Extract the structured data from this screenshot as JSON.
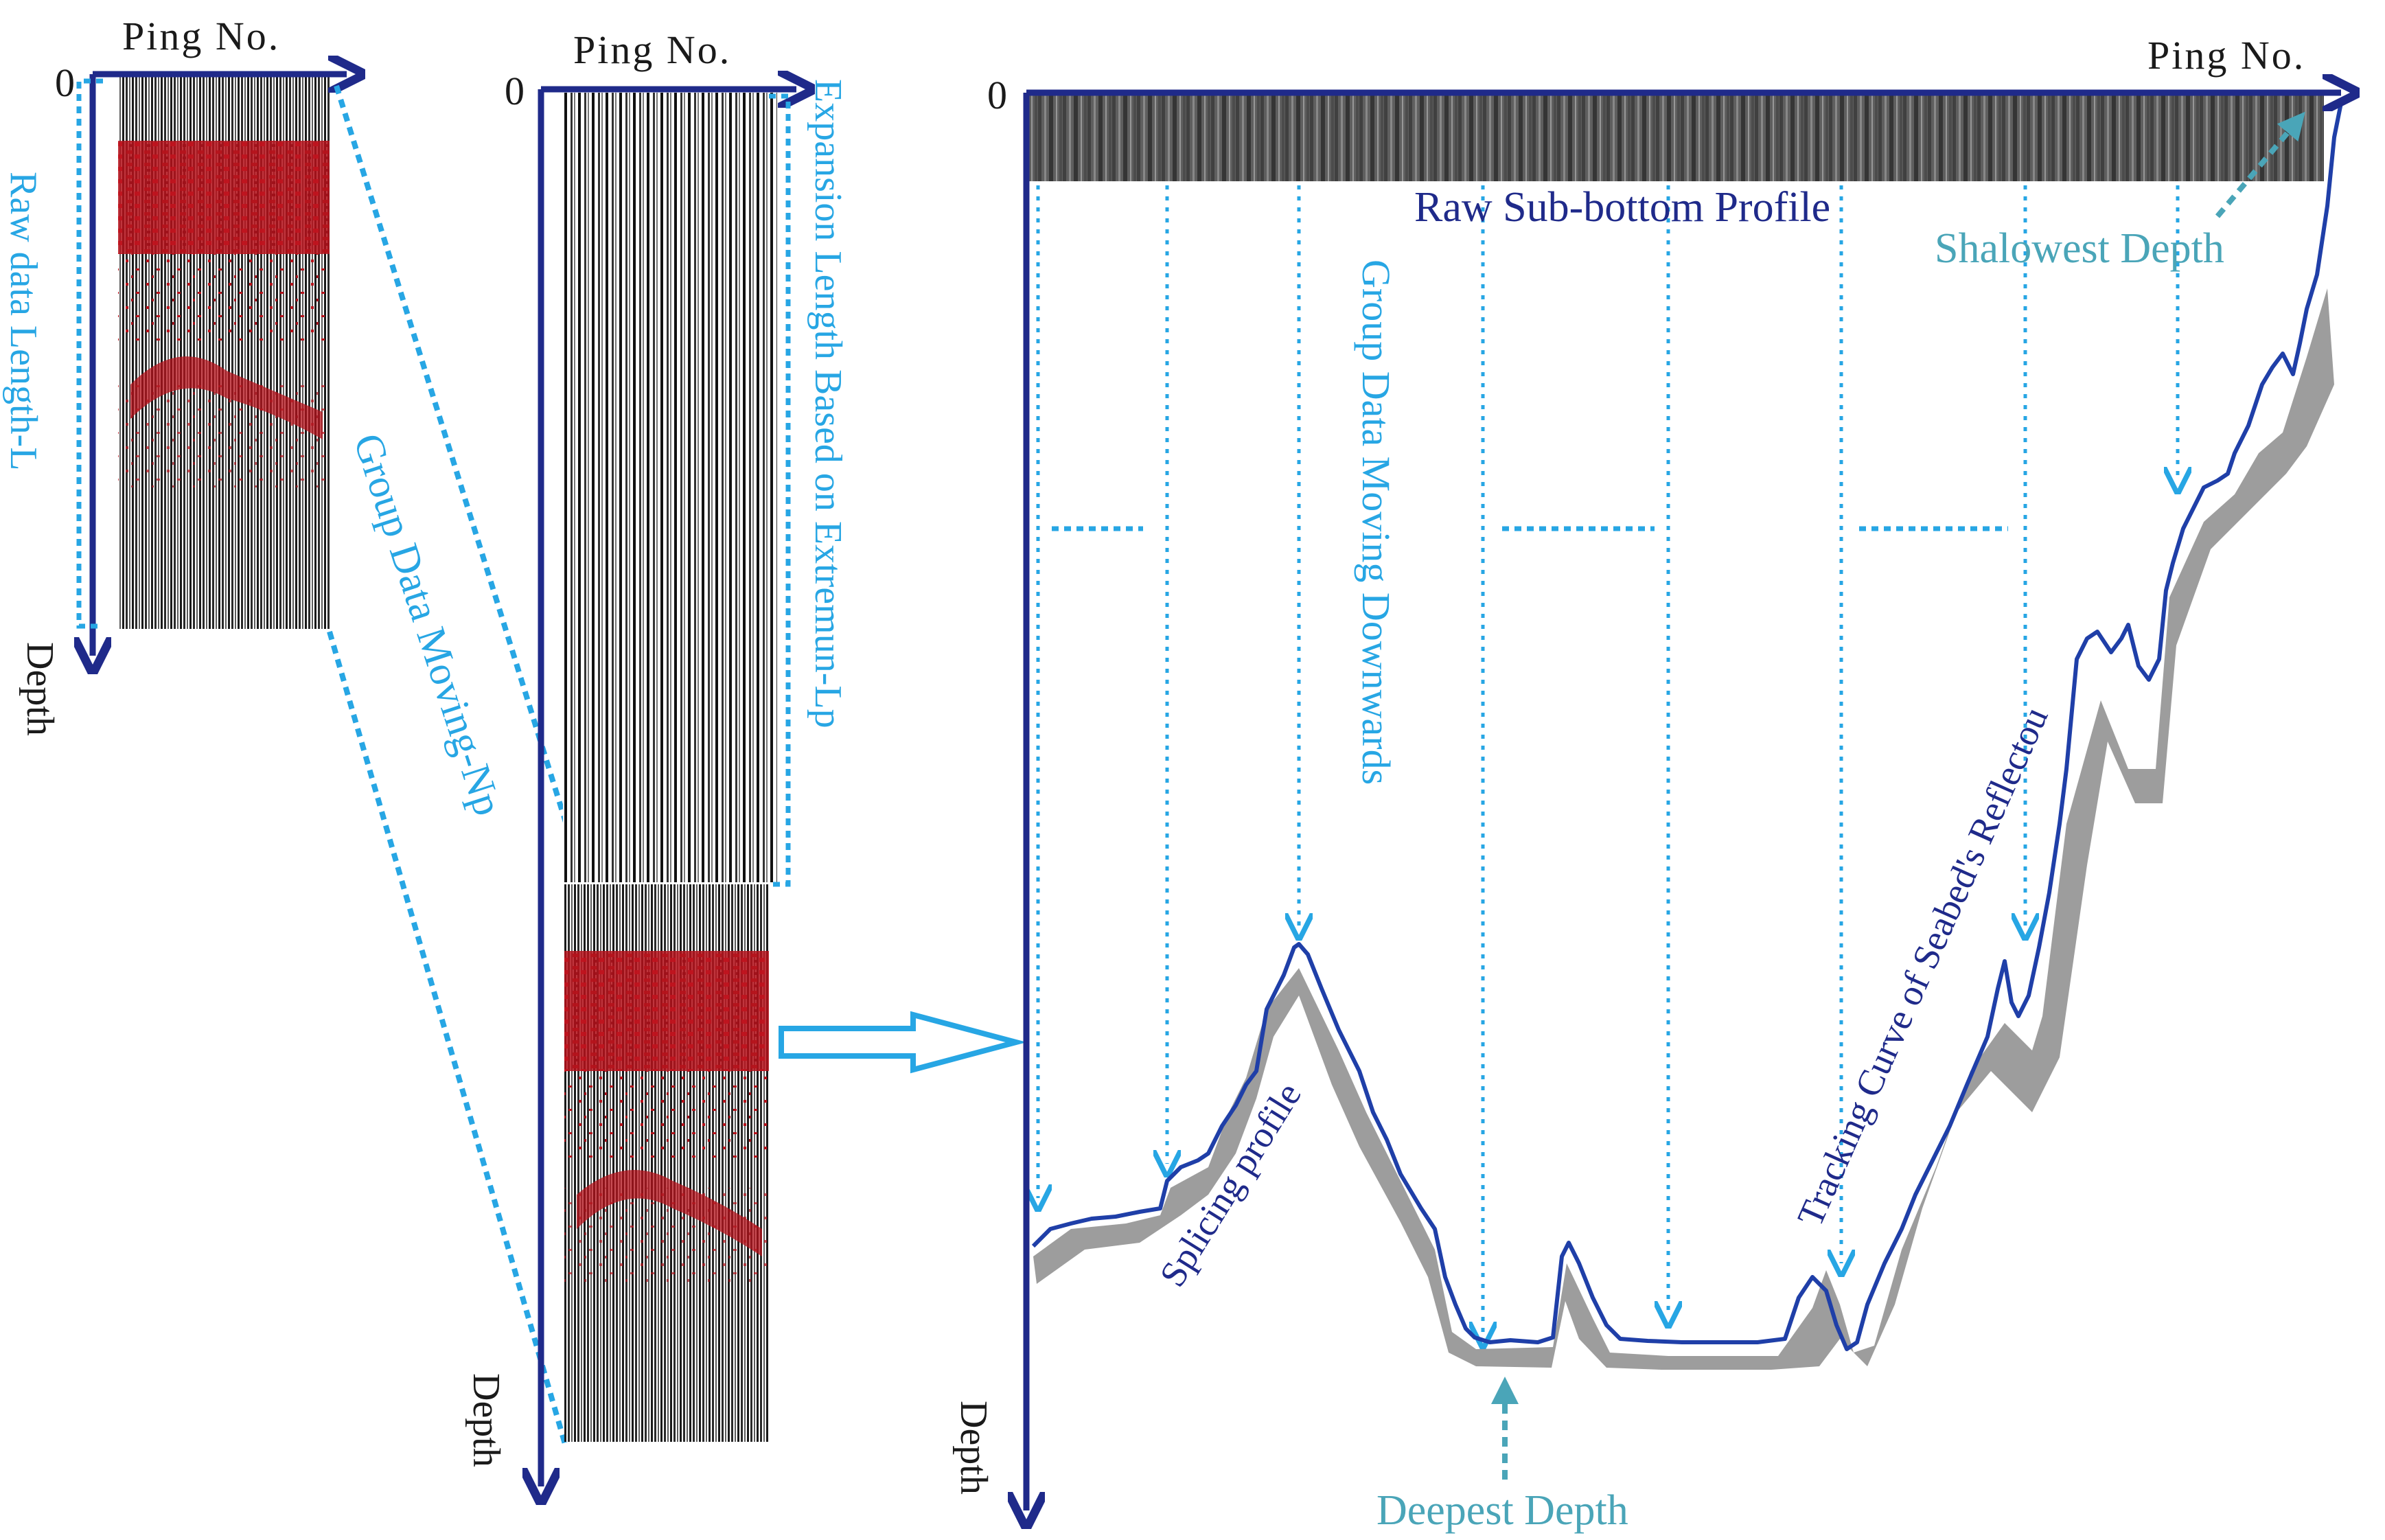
{
  "panels": {
    "raw_data": {
      "x_axis_label": "Ping  No.",
      "y_axis_label": "Depth",
      "origin_label": "0",
      "length_label": "Raw data Length-L"
    },
    "expanded_data": {
      "x_axis_label": "Ping  No.",
      "y_axis_label": "Depth",
      "origin_label": "0",
      "length_label": "Expansion Length Based on  Extremun-Lp"
    },
    "spliced_profile": {
      "x_axis_label": "Ping  No.",
      "y_axis_label": "Depth",
      "origin_label": "0",
      "raw_profile_label": "Raw Sub-bottom Profile",
      "group_moving_label": "Group Data Moving Downwards",
      "splicing_label": "Splicing profile",
      "tracking_label": "Tracking Curve of Seabed's Reflectou",
      "shallowest_label": "Shalowest Depth",
      "deepest_label": "Deepest Depth"
    }
  },
  "connector": {
    "group_moving_np_label": "Group Data Moving-Np"
  },
  "colors": {
    "axis": "#1f2a8a",
    "guide": "#27a6e4",
    "tracking_curve": "#1f3fa8",
    "seismic_red": "#b5121b",
    "annotation_teal": "#4aa5b8"
  }
}
